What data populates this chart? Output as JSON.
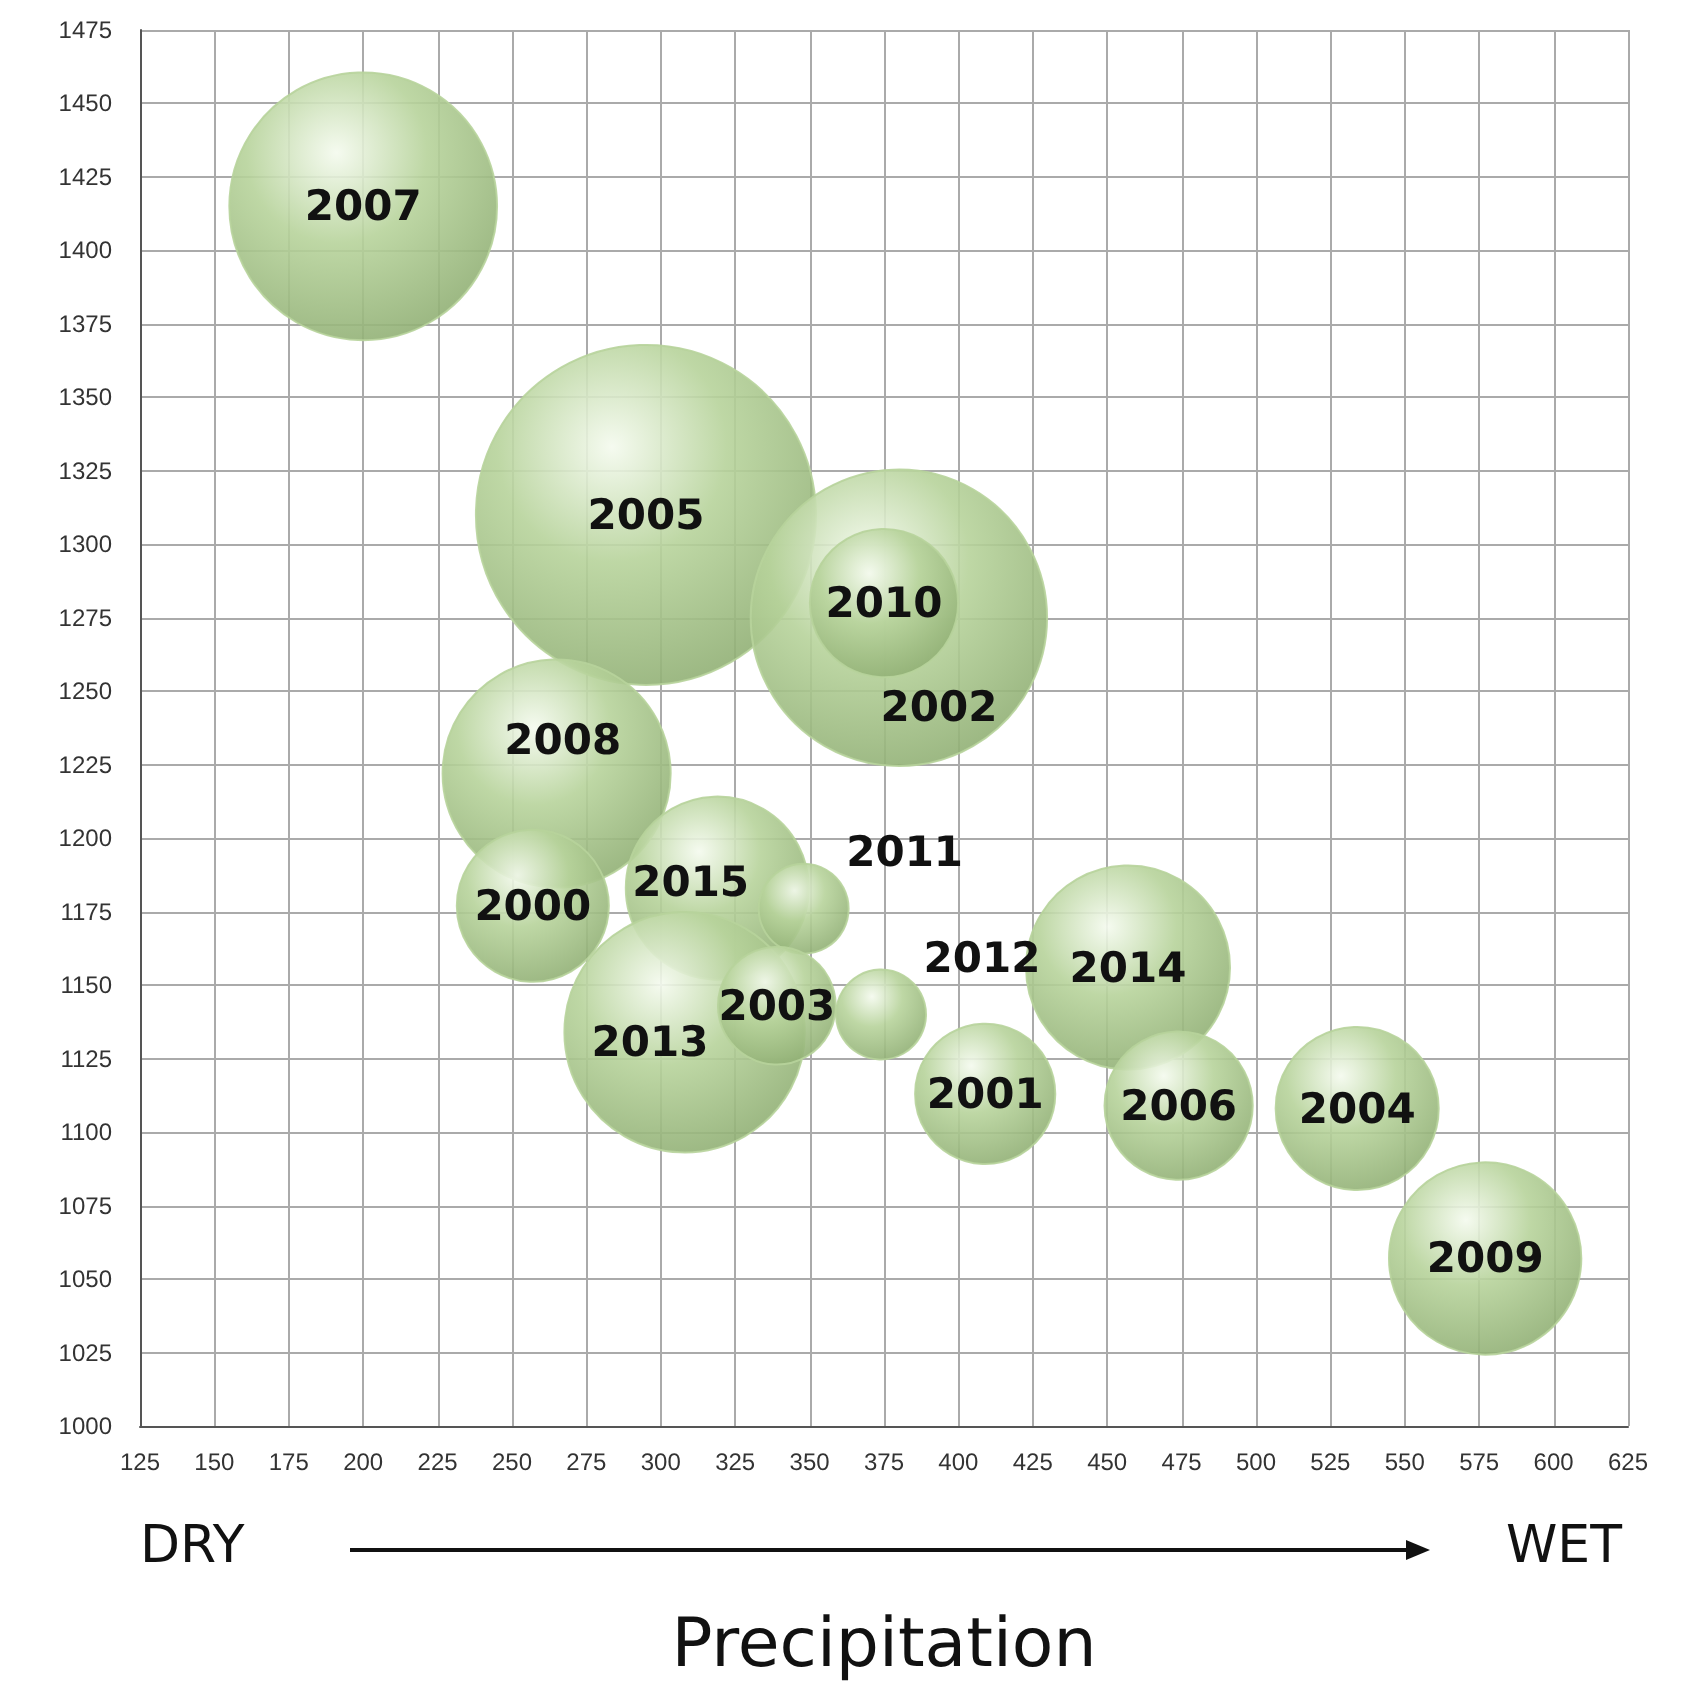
{
  "chart_data": {
    "type": "bubble",
    "xlabel": "Precipitation",
    "x": [
      200,
      295,
      380,
      375,
      265,
      257,
      319,
      348,
      308,
      339,
      374,
      457,
      409,
      474,
      534,
      577
    ],
    "values": [
      1415,
      1310,
      1275,
      1280,
      1222,
      1177,
      1183,
      1176,
      1134,
      1143,
      1140,
      1156,
      1113,
      1109,
      1108,
      1057
    ],
    "sizes": [
      0.62,
      1,
      0.76,
      0.19,
      0.45,
      0.2,
      0.29,
      0.07,
      0.5,
      0.12,
      0.07,
      0.36,
      0.17,
      0.19,
      0.23,
      0.32
    ],
    "color": "#b7d39b",
    "xlim": [
      125,
      625
    ],
    "xticks": [
      125,
      150,
      175,
      200,
      225,
      250,
      275,
      300,
      325,
      350,
      375,
      400,
      425,
      450,
      475,
      500,
      525,
      550,
      575,
      600,
      625
    ],
    "ylim": [
      1000,
      1475
    ],
    "yticks": [
      1000,
      1025,
      1050,
      1075,
      1100,
      1125,
      1150,
      1175,
      1200,
      1225,
      1250,
      1275,
      1300,
      1325,
      1350,
      1375,
      1400,
      1425,
      1450,
      1475
    ],
    "grid": true,
    "annotations": [
      "DRY",
      "WET",
      {
        "text": "2007",
        "x": 200,
        "y": 1415
      },
      {
        "text": "2005",
        "x": 295,
        "y": 1310
      },
      {
        "text": "2010",
        "x": 375,
        "y": 1280
      },
      {
        "text": "2002",
        "x": 380,
        "y": 1275
      },
      {
        "text": "2008",
        "x": 265,
        "y": 1222
      },
      {
        "text": "2000",
        "x": 257,
        "y": 1177
      },
      {
        "text": "2015",
        "x": 319,
        "y": 1183
      },
      {
        "text": "2011",
        "x": 348,
        "y": 1176
      },
      {
        "text": "2013",
        "x": 308,
        "y": 1134
      },
      {
        "text": "2003",
        "x": 339,
        "y": 1143
      },
      {
        "text": "2012",
        "x": 374,
        "y": 1140
      },
      {
        "text": "2014",
        "x": 457,
        "y": 1156
      },
      {
        "text": "2001",
        "x": 409,
        "y": 1113
      },
      {
        "text": "2006",
        "x": 474,
        "y": 1109
      },
      {
        "text": "2004",
        "x": 534,
        "y": 1108
      },
      {
        "text": "2009",
        "x": 577,
        "y": 1057
      }
    ]
  }
}
